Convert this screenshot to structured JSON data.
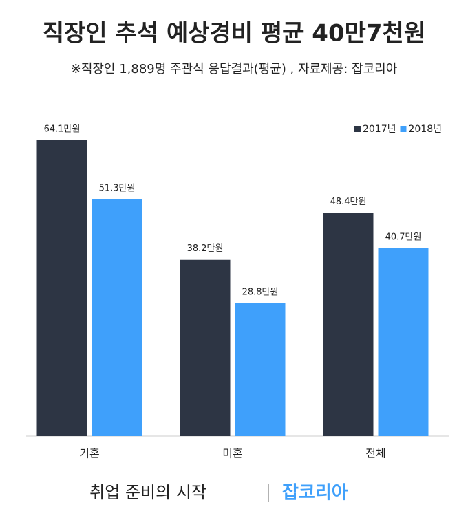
{
  "chart_data": {
    "type": "bar",
    "title": "직장인 추석 예상경비 평균 40만7천원",
    "subtitle": "※직장인 1,889명 주관식 응답결과(평균) ,  자료제공: 잡코리아",
    "categories": [
      "기혼",
      "미혼",
      "전체"
    ],
    "series": [
      {
        "name": "2017년",
        "color": "#2d3544",
        "values": [
          64.1,
          38.2,
          48.4
        ],
        "value_labels": [
          "64.1만원",
          "38.2만원",
          "48.4만원"
        ]
      },
      {
        "name": "2018년",
        "color": "#3fa0fb",
        "values": [
          51.3,
          28.8,
          40.7
        ],
        "value_labels": [
          "51.3만원",
          "28.8만원",
          "40.7만원"
        ]
      }
    ],
    "legend": "top-right",
    "footer_text": "취업 준비의 시작",
    "footer_brand": "잡코리아"
  }
}
